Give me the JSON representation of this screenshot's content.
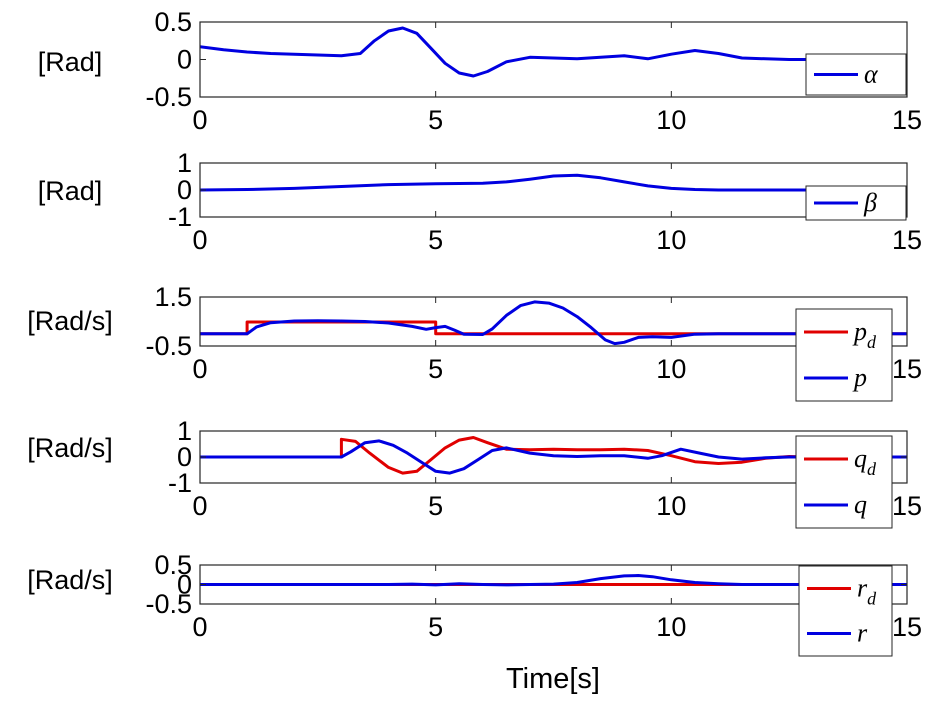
{
  "figure": {
    "xlabel": "Time[s]"
  },
  "chart_data": [
    {
      "type": "line",
      "ylabel": "[Rad]",
      "xlim": [
        0,
        15
      ],
      "ylim": [
        -0.5,
        0.5
      ],
      "xticks": [
        0,
        5,
        10,
        15
      ],
      "yticks": [
        0.5,
        0,
        -0.5
      ],
      "ytick_labels": [
        "0.5",
        "0",
        "-0.5"
      ],
      "legend_position": "bottom-right",
      "series": [
        {
          "name": "α",
          "color": "#0000e0",
          "x": [
            0,
            0.5,
            1,
            1.5,
            2,
            2.5,
            3,
            3.4,
            3.7,
            4,
            4.3,
            4.6,
            4.9,
            5.2,
            5.5,
            5.8,
            6.1,
            6.5,
            7,
            7.5,
            8,
            8.5,
            9,
            9.5,
            10,
            10.5,
            11,
            11.5,
            12,
            12.5,
            13,
            13.5,
            14,
            14.5,
            15
          ],
          "y": [
            0.17,
            0.13,
            0.1,
            0.08,
            0.07,
            0.06,
            0.05,
            0.08,
            0.25,
            0.38,
            0.42,
            0.35,
            0.15,
            -0.05,
            -0.18,
            -0.22,
            -0.16,
            -0.03,
            0.03,
            0.02,
            0.01,
            0.03,
            0.05,
            0.01,
            0.07,
            0.12,
            0.08,
            0.02,
            0.01,
            0.0,
            0.0,
            0.0,
            0.0,
            0.0,
            0.0
          ]
        }
      ]
    },
    {
      "type": "line",
      "ylabel": "[Rad]",
      "xlim": [
        0,
        15
      ],
      "ylim": [
        -1,
        1
      ],
      "xticks": [
        0,
        5,
        10,
        15
      ],
      "yticks": [
        1,
        0,
        -1
      ],
      "ytick_labels": [
        "1",
        "0",
        "-1"
      ],
      "legend_position": "bottom-right",
      "series": [
        {
          "name": "β",
          "color": "#0000e0",
          "x": [
            0,
            1,
            2,
            3,
            4,
            5,
            6,
            6.5,
            7,
            7.5,
            8,
            8.5,
            9,
            9.5,
            10,
            10.5,
            11,
            12,
            13,
            14,
            15
          ],
          "y": [
            0.0,
            0.02,
            0.06,
            0.13,
            0.2,
            0.23,
            0.25,
            0.3,
            0.4,
            0.52,
            0.55,
            0.45,
            0.3,
            0.15,
            0.06,
            0.02,
            0.0,
            0.0,
            0.0,
            0.0,
            0.0
          ]
        }
      ]
    },
    {
      "type": "line",
      "ylabel": "[Rad/s]",
      "xlim": [
        0,
        15
      ],
      "ylim": [
        -0.5,
        1.5
      ],
      "xticks": [
        0,
        5,
        10,
        15
      ],
      "yticks": [
        1.5,
        -0.5
      ],
      "ytick_labels": [
        "1.5",
        "-0.5"
      ],
      "legend_position": "bottom-right",
      "series": [
        {
          "name": "p",
          "sub": "d",
          "color": "#e00000",
          "x": [
            0,
            1,
            1,
            5,
            5,
            15
          ],
          "y": [
            0.0,
            0.0,
            0.48,
            0.48,
            0.0,
            0.0
          ]
        },
        {
          "name": "p",
          "sub": "",
          "color": "#0000e0",
          "x": [
            0,
            1,
            1.2,
            1.5,
            2,
            2.5,
            3,
            3.5,
            4,
            4.5,
            4.8,
            5,
            5.2,
            5.4,
            5.6,
            6,
            6.2,
            6.5,
            6.8,
            7.1,
            7.4,
            7.7,
            8,
            8.3,
            8.6,
            8.8,
            9,
            9.3,
            9.6,
            10,
            10.5,
            11,
            12,
            13,
            14,
            15
          ],
          "y": [
            0.0,
            0.0,
            0.28,
            0.45,
            0.52,
            0.53,
            0.52,
            0.5,
            0.44,
            0.3,
            0.18,
            0.25,
            0.3,
            0.15,
            -0.02,
            -0.03,
            0.2,
            0.75,
            1.15,
            1.3,
            1.25,
            1.05,
            0.7,
            0.25,
            -0.25,
            -0.4,
            -0.35,
            -0.15,
            -0.12,
            -0.15,
            -0.02,
            0.0,
            0.0,
            0.0,
            0.0,
            0.0
          ]
        }
      ]
    },
    {
      "type": "line",
      "ylabel": "[Rad/s]",
      "xlim": [
        0,
        15
      ],
      "ylim": [
        -1,
        1
      ],
      "xticks": [
        0,
        5,
        10,
        15
      ],
      "yticks": [
        1,
        0,
        -1
      ],
      "ytick_labels": [
        "1",
        "0",
        "-1"
      ],
      "legend_position": "bottom-right",
      "series": [
        {
          "name": "q",
          "sub": "d",
          "color": "#e00000",
          "x": [
            0,
            3,
            3,
            3.3,
            3.6,
            4,
            4.3,
            4.6,
            4.9,
            5.2,
            5.5,
            5.8,
            6.1,
            6.5,
            7,
            7.5,
            8,
            8.5,
            9,
            9.5,
            10,
            10.5,
            11,
            11.5,
            12,
            12.5,
            13,
            14,
            15
          ],
          "y": [
            0.0,
            0.0,
            0.68,
            0.6,
            0.15,
            -0.4,
            -0.62,
            -0.55,
            -0.1,
            0.35,
            0.65,
            0.75,
            0.55,
            0.3,
            0.28,
            0.3,
            0.28,
            0.28,
            0.3,
            0.25,
            0.05,
            -0.18,
            -0.25,
            -0.2,
            -0.05,
            0.02,
            0.0,
            0.0,
            0.0
          ]
        },
        {
          "name": "q",
          "sub": "",
          "color": "#0000e0",
          "x": [
            0,
            3,
            3.2,
            3.5,
            3.8,
            4.1,
            4.4,
            4.7,
            5,
            5.3,
            5.6,
            5.9,
            6.2,
            6.5,
            7,
            7.5,
            8,
            8.5,
            9,
            9.5,
            9.8,
            10.2,
            10.6,
            11,
            11.5,
            12,
            12.5,
            13,
            14,
            15
          ],
          "y": [
            0.0,
            0.0,
            0.2,
            0.55,
            0.62,
            0.45,
            0.15,
            -0.2,
            -0.55,
            -0.62,
            -0.45,
            -0.1,
            0.25,
            0.35,
            0.15,
            0.05,
            0.02,
            0.05,
            0.05,
            -0.05,
            0.05,
            0.3,
            0.15,
            0.0,
            -0.08,
            -0.03,
            0.0,
            0.0,
            0.0,
            0.0
          ]
        }
      ]
    },
    {
      "type": "line",
      "ylabel": "[Rad/s]",
      "xlim": [
        0,
        15
      ],
      "ylim": [
        -0.5,
        0.5
      ],
      "xticks": [
        0,
        5,
        10,
        15
      ],
      "yticks": [
        0.5,
        0,
        -0.5
      ],
      "ytick_labels": [
        "0.5",
        "0",
        "-0.5"
      ],
      "legend_position": "bottom-right",
      "series": [
        {
          "name": "r",
          "sub": "d",
          "color": "#e00000",
          "x": [
            0,
            15
          ],
          "y": [
            0.0,
            0.0
          ]
        },
        {
          "name": "r",
          "sub": "",
          "color": "#0000e0",
          "x": [
            0,
            4,
            4.5,
            5,
            5.5,
            6,
            6.5,
            7,
            7.5,
            8,
            8.5,
            9,
            9.3,
            9.6,
            10,
            10.5,
            11,
            11.5,
            12,
            13,
            14,
            15
          ],
          "y": [
            0.0,
            0.0,
            0.01,
            -0.01,
            0.02,
            0.0,
            -0.01,
            0.0,
            0.01,
            0.05,
            0.15,
            0.22,
            0.23,
            0.2,
            0.12,
            0.05,
            0.02,
            0.0,
            0.0,
            0.0,
            0.0,
            0.0
          ]
        }
      ]
    }
  ]
}
